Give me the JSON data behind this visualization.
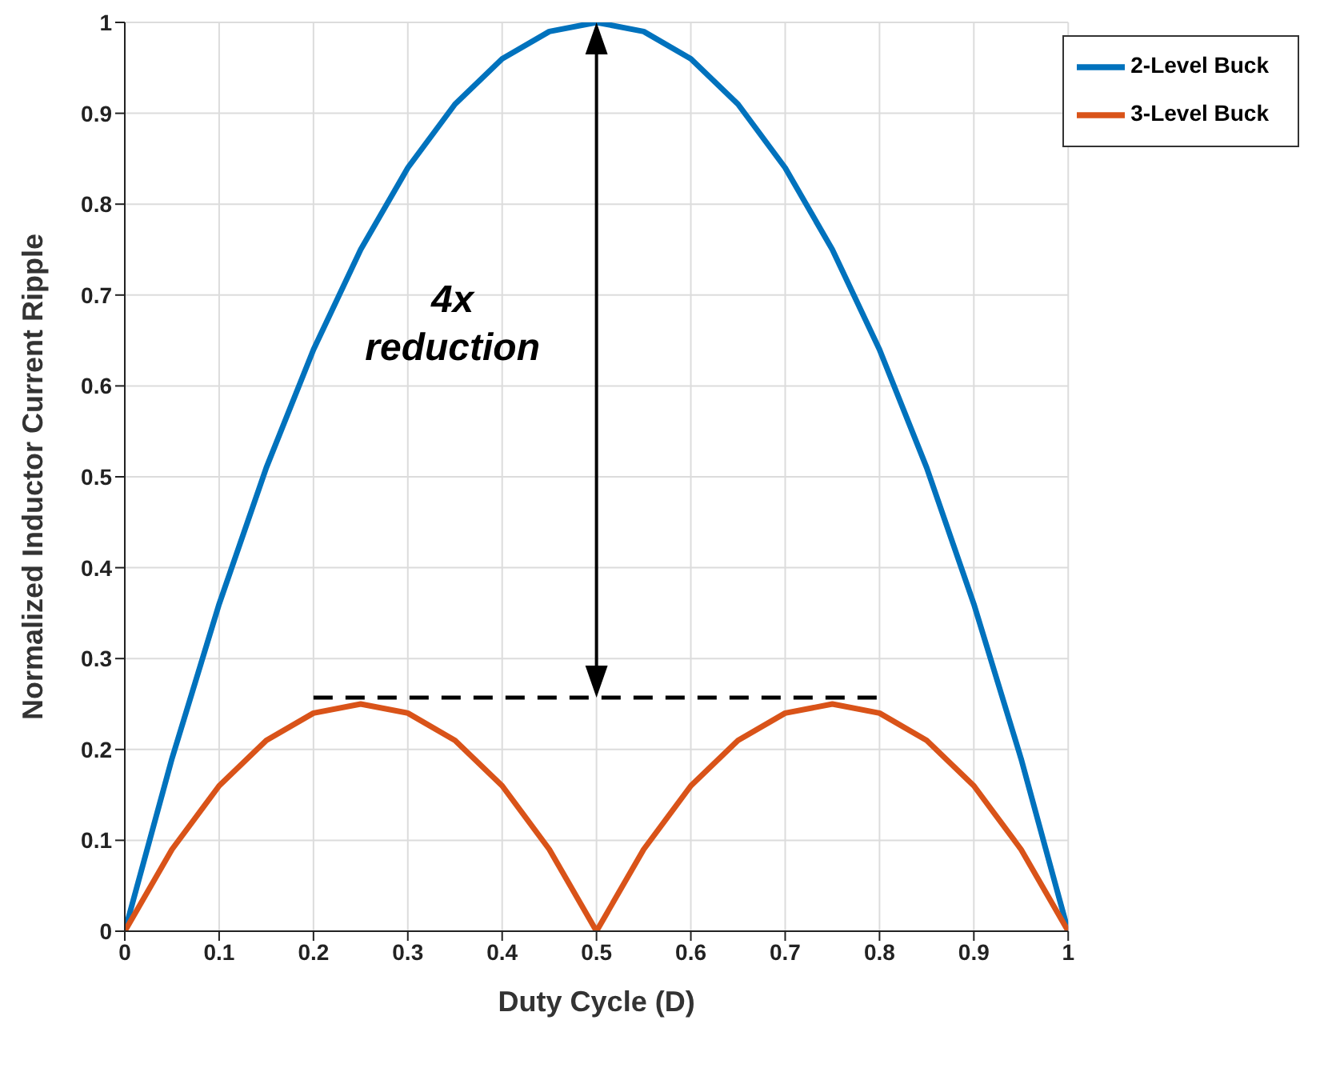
{
  "chart_data": {
    "type": "line",
    "xlabel": "Duty Cycle (D)",
    "ylabel": "Normalized Inductor Current Ripple",
    "x": [
      0,
      0.05,
      0.1,
      0.15,
      0.2,
      0.25,
      0.3,
      0.35,
      0.4,
      0.45,
      0.5,
      0.55,
      0.6,
      0.65,
      0.7,
      0.75,
      0.8,
      0.85,
      0.9,
      0.95,
      1
    ],
    "series": [
      {
        "name": "2-Level Buck",
        "color": "#0072bd",
        "values": [
          0,
          0.19,
          0.36,
          0.51,
          0.64,
          0.75,
          0.84,
          0.91,
          0.96,
          0.99,
          1,
          0.99,
          0.96,
          0.91,
          0.84,
          0.75,
          0.64,
          0.51,
          0.36,
          0.19,
          0
        ]
      },
      {
        "name": "3-Level Buck",
        "color": "#d95319",
        "values": [
          0,
          0.09,
          0.16,
          0.21,
          0.24,
          0.25,
          0.24,
          0.21,
          0.16,
          0.09,
          0,
          0.09,
          0.16,
          0.21,
          0.24,
          0.25,
          0.24,
          0.21,
          0.16,
          0.09,
          0
        ]
      },
      {
        "color": "#000000",
        "line_style": "dashed",
        "x": [
          0.2,
          0.8
        ],
        "values": [
          0.257,
          0.257
        ]
      }
    ],
    "xlim": [
      0,
      1
    ],
    "xticks": [
      0,
      0.1,
      0.2,
      0.3,
      0.4,
      0.5,
      0.6,
      0.7,
      0.8,
      0.9,
      1
    ],
    "ylim": [
      0,
      1
    ],
    "yticks": [
      0,
      0.1,
      0.2,
      0.3,
      0.4,
      0.5,
      0.6,
      0.7,
      0.8,
      0.9,
      1
    ],
    "grid": true,
    "legend": "top right",
    "marker": "none",
    "annotations": [
      "4x reduction"
    ]
  }
}
